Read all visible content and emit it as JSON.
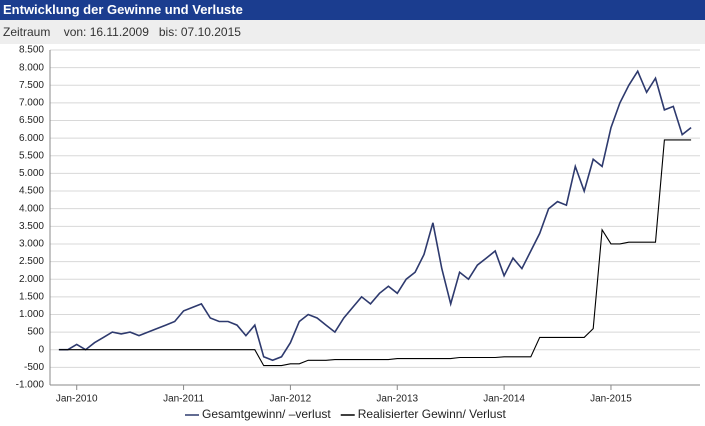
{
  "header": {
    "title": "Entwicklung der Gewinne und Verluste",
    "period_label": "Zeitraum",
    "from": "von: 16.11.2009",
    "to": "bis: 07.10.2015"
  },
  "chart_data": {
    "type": "line",
    "x": [
      "2009-11",
      "2009-12",
      "2010-01",
      "2010-02",
      "2010-03",
      "2010-04",
      "2010-05",
      "2010-06",
      "2010-07",
      "2010-08",
      "2010-09",
      "2010-10",
      "2010-11",
      "2010-12",
      "2011-01",
      "2011-02",
      "2011-03",
      "2011-04",
      "2011-05",
      "2011-06",
      "2011-07",
      "2011-08",
      "2011-09",
      "2011-10",
      "2011-11",
      "2011-12",
      "2012-01",
      "2012-02",
      "2012-03",
      "2012-04",
      "2012-05",
      "2012-06",
      "2012-07",
      "2012-08",
      "2012-09",
      "2012-10",
      "2012-11",
      "2012-12",
      "2013-01",
      "2013-02",
      "2013-03",
      "2013-04",
      "2013-05",
      "2013-06",
      "2013-07",
      "2013-08",
      "2013-09",
      "2013-10",
      "2013-11",
      "2013-12",
      "2014-01",
      "2014-02",
      "2014-03",
      "2014-04",
      "2014-05",
      "2014-06",
      "2014-07",
      "2014-08",
      "2014-09",
      "2014-10",
      "2014-11",
      "2014-12",
      "2015-01",
      "2015-02",
      "2015-03",
      "2015-04",
      "2015-05",
      "2015-06",
      "2015-07",
      "2015-08",
      "2015-09",
      "2015-10"
    ],
    "series": [
      {
        "name": "Gesamtgewinn/ –verlust",
        "color": "#2e3a6e",
        "values": [
          0,
          0,
          150,
          0,
          200,
          350,
          500,
          450,
          500,
          400,
          500,
          600,
          700,
          800,
          1100,
          1200,
          1300,
          900,
          800,
          800,
          700,
          400,
          700,
          -200,
          -300,
          -200,
          200,
          800,
          1000,
          900,
          700,
          500,
          900,
          1200,
          1500,
          1300,
          1600,
          1800,
          1600,
          2000,
          2200,
          2700,
          3600,
          2300,
          1300,
          2200,
          2000,
          2400,
          2600,
          2800,
          2100,
          2600,
          2300,
          2800,
          3300,
          4000,
          4200,
          4100,
          5200,
          4500,
          5400,
          5200,
          6300,
          7000,
          7500,
          7900,
          7300,
          7700,
          6800,
          6900,
          6100,
          6300
        ]
      },
      {
        "name": "Realisierter Gewinn/ Verlust",
        "color": "#000000",
        "values": [
          0,
          0,
          0,
          0,
          0,
          0,
          0,
          0,
          0,
          0,
          0,
          0,
          0,
          0,
          0,
          0,
          0,
          0,
          0,
          0,
          0,
          0,
          0,
          -450,
          -450,
          -450,
          -400,
          -400,
          -300,
          -300,
          -300,
          -280,
          -280,
          -280,
          -280,
          -280,
          -280,
          -280,
          -250,
          -250,
          -250,
          -250,
          -250,
          -250,
          -250,
          -220,
          -220,
          -220,
          -220,
          -220,
          -200,
          -200,
          -200,
          -200,
          350,
          350,
          350,
          350,
          350,
          350,
          600,
          3400,
          3000,
          3000,
          3050,
          3050,
          3050,
          3050,
          5950,
          5950,
          5950,
          5950
        ]
      }
    ],
    "xlim": [
      "2009-10",
      "2015-11"
    ],
    "xticks": [
      {
        "value": "2010-01",
        "label": "Jan-2010"
      },
      {
        "value": "2011-01",
        "label": "Jan-2011"
      },
      {
        "value": "2012-01",
        "label": "Jan-2012"
      },
      {
        "value": "2013-01",
        "label": "Jan-2013"
      },
      {
        "value": "2014-01",
        "label": "Jan-2014"
      },
      {
        "value": "2015-01",
        "label": "Jan-2015"
      }
    ],
    "ylim": [
      -1000,
      8500
    ],
    "yticks": [
      {
        "value": -1000,
        "label": "-1.000"
      },
      {
        "value": -500,
        "label": "-500"
      },
      0,
      500,
      {
        "value": 1000,
        "label": "1.000"
      },
      {
        "value": 1500,
        "label": "1.500"
      },
      {
        "value": 2000,
        "label": "2.000"
      },
      {
        "value": 2500,
        "label": "2.500"
      },
      {
        "value": 3000,
        "label": "3.000"
      },
      {
        "value": 3500,
        "label": "3.500"
      },
      {
        "value": 4000,
        "label": "4.000"
      },
      {
        "value": 4500,
        "label": "4.500"
      },
      {
        "value": 5000,
        "label": "5.000"
      },
      {
        "value": 5500,
        "label": "5.500"
      },
      {
        "value": 6000,
        "label": "6.000"
      },
      {
        "value": 6500,
        "label": "6.500"
      },
      {
        "value": 7000,
        "label": "7.000"
      },
      {
        "value": 7500,
        "label": "7.500"
      },
      {
        "value": 8000,
        "label": "8.000"
      },
      {
        "value": 8500,
        "label": "8.500"
      }
    ],
    "grid": true
  }
}
